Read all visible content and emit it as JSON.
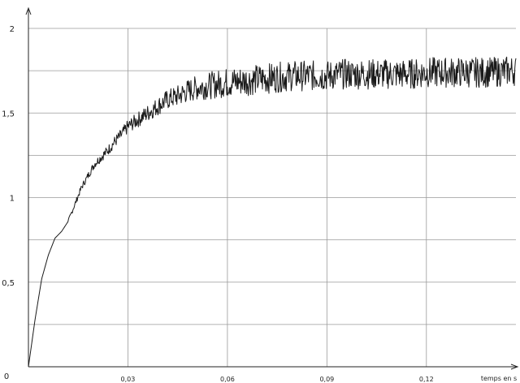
{
  "chart_data": {
    "type": "line",
    "title": "",
    "xlabel": "temps en s",
    "ylabel": "",
    "xlim": [
      0,
      0.147
    ],
    "ylim": [
      0,
      2
    ],
    "grid": true,
    "x_ticks": [
      {
        "value": 0,
        "label": "0"
      },
      {
        "value": 0.03,
        "label": "0,03"
      },
      {
        "value": 0.06,
        "label": "0,06"
      },
      {
        "value": 0.09,
        "label": "0,09"
      },
      {
        "value": 0.12,
        "label": "0,12"
      }
    ],
    "y_ticks": [
      {
        "value": 0,
        "label": ""
      },
      {
        "value": 0.5,
        "label": "0,5"
      },
      {
        "value": 1,
        "label": "1"
      },
      {
        "value": 1.5,
        "label": "1,5"
      },
      {
        "value": 2,
        "label": "2"
      }
    ],
    "y_minor_gridlines": [
      0.25,
      0.75,
      1.25,
      1.75
    ],
    "series": [
      {
        "name": "",
        "color": "#1a1a1a",
        "x": [
          0,
          0.002,
          0.004,
          0.006,
          0.008,
          0.01,
          0.012,
          0.014,
          0.016,
          0.018,
          0.02,
          0.022,
          0.024,
          0.026,
          0.028,
          0.03,
          0.033,
          0.036,
          0.039,
          0.042,
          0.045,
          0.048,
          0.051,
          0.054,
          0.057,
          0.06,
          0.065,
          0.07,
          0.075,
          0.08,
          0.085,
          0.09,
          0.095,
          0.1,
          0.105,
          0.11,
          0.115,
          0.12,
          0.125,
          0.13,
          0.135,
          0.14,
          0.145,
          0.147
        ],
        "y": [
          0,
          0.28,
          0.52,
          0.66,
          0.76,
          0.8,
          0.86,
          0.96,
          1.06,
          1.13,
          1.2,
          1.24,
          1.28,
          1.33,
          1.37,
          1.42,
          1.46,
          1.5,
          1.54,
          1.58,
          1.6,
          1.63,
          1.65,
          1.66,
          1.67,
          1.68,
          1.69,
          1.7,
          1.71,
          1.72,
          1.72,
          1.72,
          1.73,
          1.73,
          1.73,
          1.73,
          1.73,
          1.74,
          1.74,
          1.74,
          1.74,
          1.74,
          1.75,
          1.75
        ]
      }
    ]
  }
}
